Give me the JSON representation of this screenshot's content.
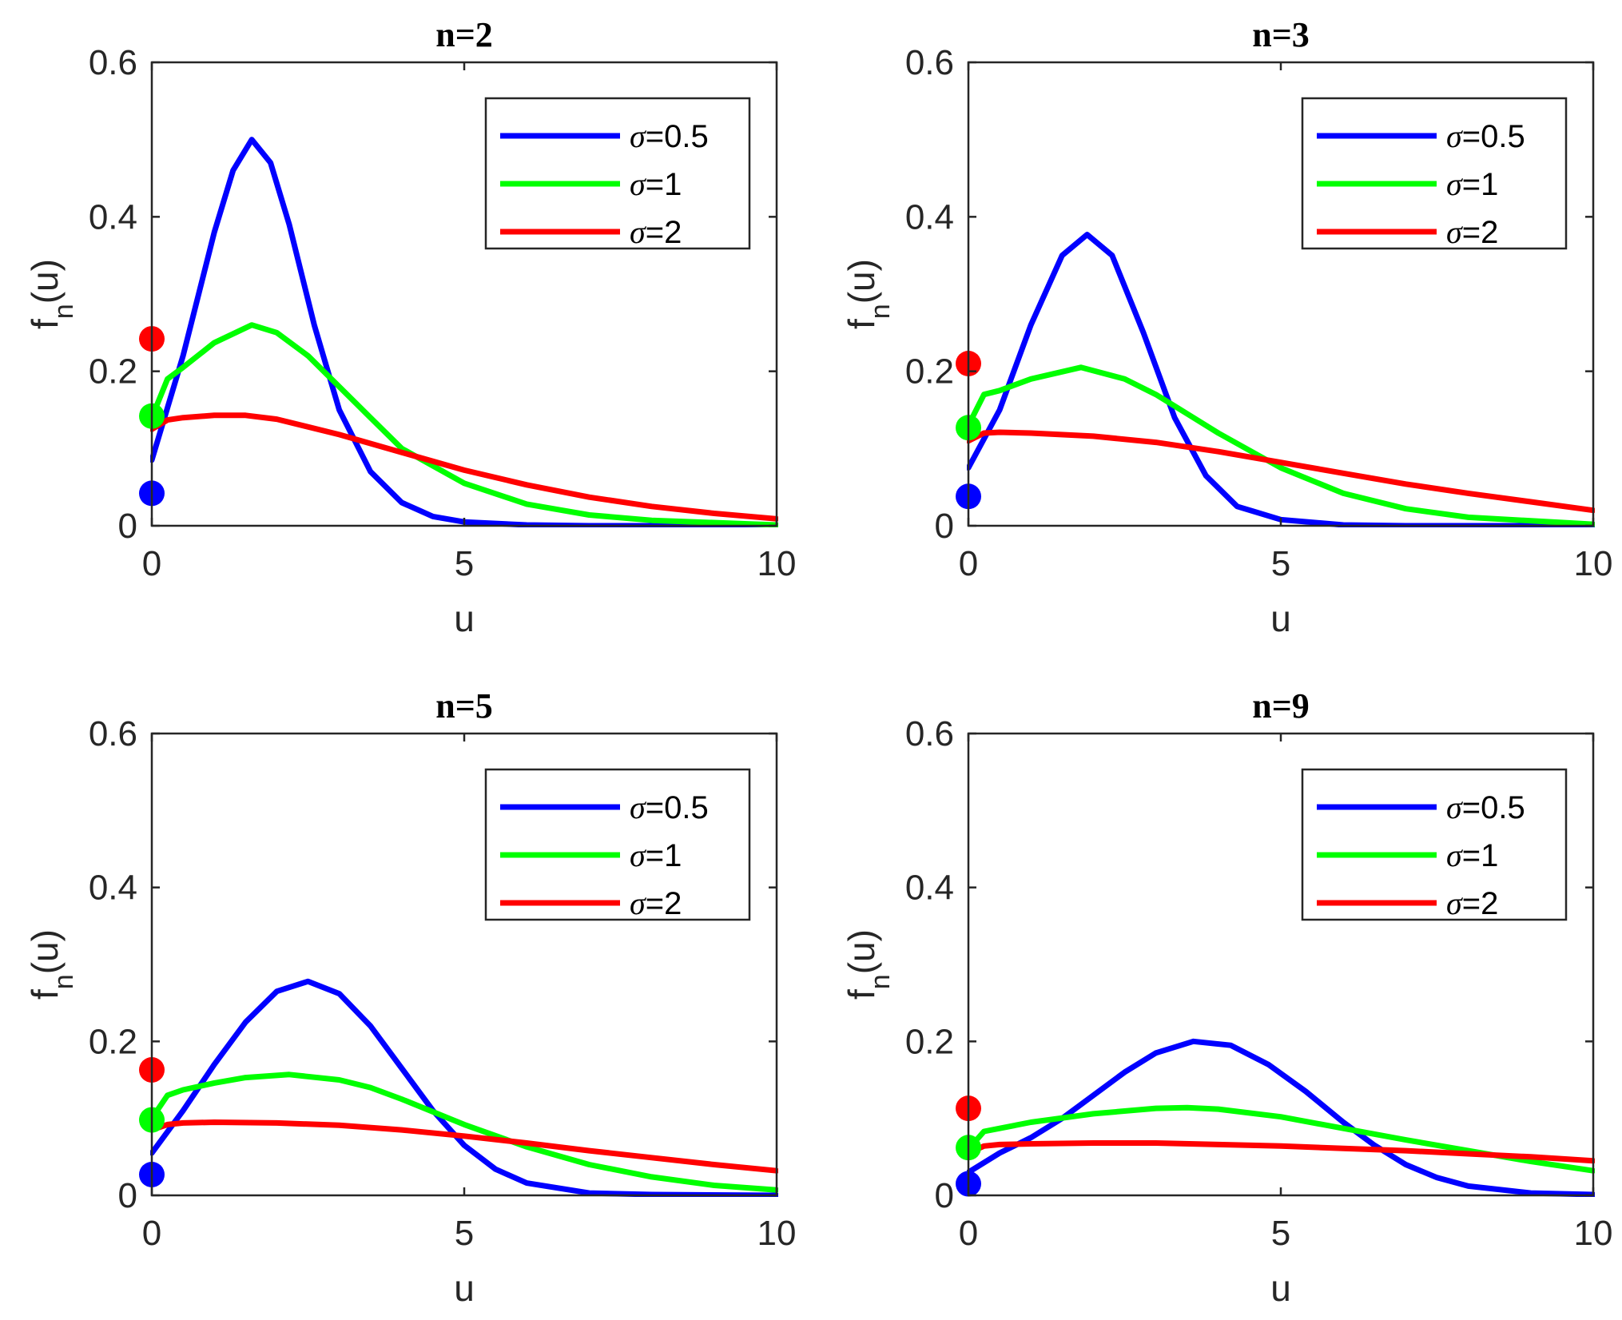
{
  "chart_data": [
    {
      "type": "line",
      "title": "n=2",
      "xlabel": "u",
      "ylabel": "f_n(u)",
      "xlim": [
        0,
        10
      ],
      "ylim": [
        0,
        0.6
      ],
      "xticks": [
        "0",
        "5",
        "10"
      ],
      "yticks": [
        "0",
        "0.2",
        "0.4",
        "0.6"
      ],
      "legend_position": "top-right",
      "series": [
        {
          "name": "σ=0.5",
          "sigma_label": "σ",
          "value_label": "=0.5",
          "color": "#0000ff",
          "x": [
            0,
            0.5,
            1,
            1.3,
            1.6,
            1.9,
            2.2,
            2.6,
            3,
            3.5,
            4,
            4.5,
            5,
            6,
            7,
            8,
            10
          ],
          "y": [
            0.085,
            0.22,
            0.38,
            0.46,
            0.5,
            0.47,
            0.39,
            0.26,
            0.15,
            0.07,
            0.03,
            0.012,
            0.005,
            0.001,
            0,
            0,
            0
          ],
          "point": 0.042
        },
        {
          "name": "σ=1",
          "sigma_label": "σ",
          "value_label": "=1",
          "color": "#00ff00",
          "x": [
            0,
            0.25,
            0.5,
            1,
            1.6,
            2,
            2.5,
            3,
            3.5,
            4,
            5,
            6,
            7,
            8,
            10
          ],
          "y": [
            0.14,
            0.19,
            0.205,
            0.237,
            0.26,
            0.25,
            0.22,
            0.18,
            0.14,
            0.1,
            0.055,
            0.028,
            0.014,
            0.007,
            0.001
          ],
          "point": 0.142
        },
        {
          "name": "σ=2",
          "sigma_label": "σ",
          "value_label": "=2",
          "color": "#ff0000",
          "x": [
            0,
            0.25,
            0.5,
            1,
            1.5,
            2,
            3,
            4,
            5,
            6,
            7,
            8,
            9,
            10
          ],
          "y": [
            0.125,
            0.137,
            0.14,
            0.143,
            0.143,
            0.138,
            0.118,
            0.095,
            0.072,
            0.053,
            0.037,
            0.025,
            0.016,
            0.009
          ],
          "point": 0.242
        }
      ]
    },
    {
      "type": "line",
      "title": "n=3",
      "xlabel": "u",
      "ylabel": "f_n(u)",
      "xlim": [
        0,
        10
      ],
      "ylim": [
        0,
        0.6
      ],
      "xticks": [
        "0",
        "5",
        "10"
      ],
      "yticks": [
        "0",
        "0.2",
        "0.4",
        "0.6"
      ],
      "legend_position": "top-right",
      "series": [
        {
          "name": "σ=0.5",
          "sigma_label": "σ",
          "value_label": "=0.5",
          "color": "#0000ff",
          "x": [
            0,
            0.5,
            1,
            1.5,
            1.9,
            2.3,
            2.8,
            3.3,
            3.8,
            4.3,
            5,
            6,
            7,
            8,
            10
          ],
          "y": [
            0.075,
            0.15,
            0.26,
            0.35,
            0.377,
            0.35,
            0.25,
            0.14,
            0.065,
            0.025,
            0.008,
            0.001,
            0,
            0,
            0
          ],
          "point": 0.038
        },
        {
          "name": "σ=1",
          "sigma_label": "σ",
          "value_label": "=1",
          "color": "#00ff00",
          "x": [
            0,
            0.25,
            0.5,
            1,
            1.8,
            2.5,
            3,
            3.5,
            4,
            5,
            6,
            7,
            8,
            10
          ],
          "y": [
            0.13,
            0.17,
            0.175,
            0.19,
            0.205,
            0.19,
            0.17,
            0.145,
            0.12,
            0.075,
            0.042,
            0.022,
            0.011,
            0.002
          ],
          "point": 0.127
        },
        {
          "name": "σ=2",
          "sigma_label": "σ",
          "value_label": "=2",
          "color": "#ff0000",
          "x": [
            0,
            0.25,
            0.5,
            1,
            2,
            3,
            4,
            5,
            6,
            7,
            8,
            9,
            10
          ],
          "y": [
            0.11,
            0.12,
            0.121,
            0.12,
            0.116,
            0.108,
            0.096,
            0.082,
            0.068,
            0.054,
            0.042,
            0.031,
            0.02
          ],
          "point": 0.21
        }
      ]
    },
    {
      "type": "line",
      "title": "n=5",
      "xlabel": "u",
      "ylabel": "f_n(u)",
      "xlim": [
        0,
        10
      ],
      "ylim": [
        0,
        0.6
      ],
      "xticks": [
        "0",
        "5",
        "10"
      ],
      "yticks": [
        "0",
        "0.2",
        "0.4",
        "0.6"
      ],
      "legend_position": "top-right",
      "series": [
        {
          "name": "σ=0.5",
          "sigma_label": "σ",
          "value_label": "=0.5",
          "color": "#0000ff",
          "x": [
            0,
            0.5,
            1,
            1.5,
            2,
            2.5,
            3,
            3.5,
            4,
            4.5,
            5,
            5.5,
            6,
            7,
            8,
            10
          ],
          "y": [
            0.055,
            0.11,
            0.17,
            0.225,
            0.265,
            0.278,
            0.262,
            0.22,
            0.165,
            0.11,
            0.065,
            0.034,
            0.016,
            0.003,
            0.001,
            0
          ],
          "point": 0.027
        },
        {
          "name": "σ=1",
          "sigma_label": "σ",
          "value_label": "=1",
          "color": "#00ff00",
          "x": [
            0,
            0.25,
            0.5,
            1,
            1.5,
            2.2,
            3,
            3.5,
            4,
            5,
            6,
            7,
            8,
            9,
            10
          ],
          "y": [
            0.1,
            0.13,
            0.137,
            0.146,
            0.153,
            0.157,
            0.15,
            0.14,
            0.125,
            0.092,
            0.063,
            0.04,
            0.024,
            0.013,
            0.007
          ],
          "point": 0.098
        },
        {
          "name": "σ=2",
          "sigma_label": "σ",
          "value_label": "=2",
          "color": "#ff0000",
          "x": [
            0,
            0.25,
            0.5,
            1,
            2,
            3,
            4,
            5,
            6,
            7,
            8,
            9,
            10
          ],
          "y": [
            0.085,
            0.092,
            0.094,
            0.095,
            0.094,
            0.091,
            0.085,
            0.077,
            0.068,
            0.058,
            0.049,
            0.04,
            0.032
          ],
          "point": 0.163
        }
      ]
    },
    {
      "type": "line",
      "title": "n=9",
      "xlabel": "u",
      "ylabel": "f_n(u)",
      "xlim": [
        0,
        10
      ],
      "ylim": [
        0,
        0.6
      ],
      "xticks": [
        "0",
        "5",
        "10"
      ],
      "yticks": [
        "0",
        "0.2",
        "0.4",
        "0.6"
      ],
      "legend_position": "top-right",
      "series": [
        {
          "name": "σ=0.5",
          "sigma_label": "σ",
          "value_label": "=0.5",
          "color": "#0000ff",
          "x": [
            0,
            0.5,
            1,
            1.5,
            2,
            2.5,
            3,
            3.6,
            4.2,
            4.8,
            5.4,
            6,
            6.5,
            7,
            7.5,
            8,
            9,
            10
          ],
          "y": [
            0.03,
            0.055,
            0.075,
            0.1,
            0.13,
            0.16,
            0.185,
            0.2,
            0.195,
            0.17,
            0.135,
            0.095,
            0.065,
            0.04,
            0.023,
            0.012,
            0.003,
            0.001
          ],
          "point": 0.015
        },
        {
          "name": "σ=1",
          "sigma_label": "σ",
          "value_label": "=1",
          "color": "#00ff00",
          "x": [
            0,
            0.25,
            0.5,
            1,
            2,
            3,
            3.5,
            4,
            5,
            6,
            7,
            8,
            9,
            10
          ],
          "y": [
            0.06,
            0.083,
            0.087,
            0.095,
            0.106,
            0.113,
            0.114,
            0.112,
            0.102,
            0.087,
            0.072,
            0.058,
            0.044,
            0.032
          ],
          "point": 0.062
        },
        {
          "name": "σ=2",
          "sigma_label": "σ",
          "value_label": "=2",
          "color": "#ff0000",
          "x": [
            0,
            0.25,
            0.5,
            1,
            2,
            3,
            4,
            5,
            6,
            7,
            8,
            9,
            10
          ],
          "y": [
            0.055,
            0.064,
            0.066,
            0.067,
            0.068,
            0.068,
            0.066,
            0.064,
            0.061,
            0.058,
            0.054,
            0.05,
            0.045
          ],
          "point": 0.113
        }
      ]
    }
  ]
}
